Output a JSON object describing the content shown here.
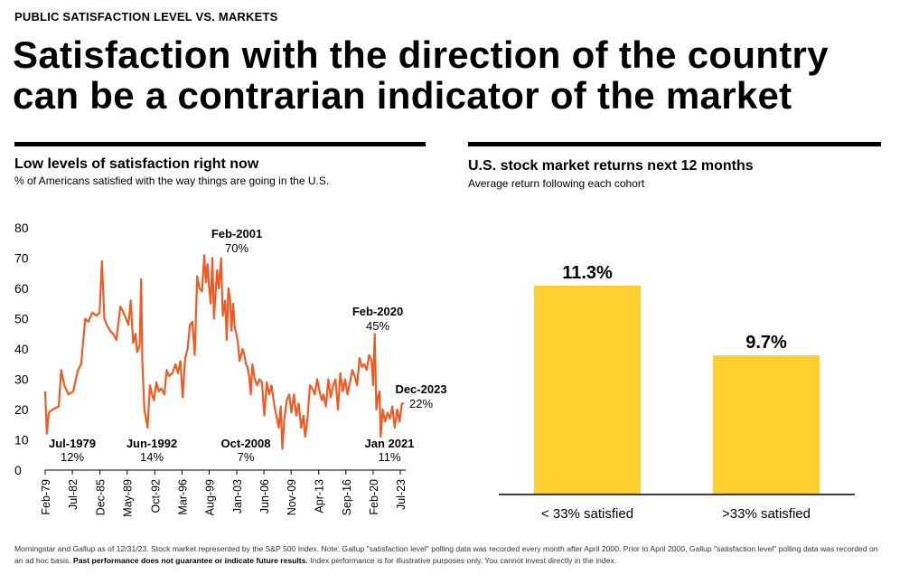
{
  "header": {
    "eyebrow": "PUBLIC SATISFACTION LEVEL VS. MARKETS",
    "headline": "Satisfaction with the direction of the country can be a contrarian indicator of the market"
  },
  "left_panel": {
    "title": "Low levels of satisfaction right now",
    "subtitle": "% of Americans satisfied with the way things are going in the U.S."
  },
  "right_panel": {
    "title": "U.S. stock market returns next 12 months",
    "subtitle": "Average return following each cohort"
  },
  "footnote": {
    "text1": "Morningstar and Gallup as of 12/31/23. Stock market represented by the S&P 500 Index. Note: Gallup \"satisfaction level\" polling data was recorded every month after April 2000. Prior to April 2000, Gallup \"satisfaction level\" polling data was recorded on an ad hoc basis. ",
    "bold": "Past performance does not guarantee or indicate future results.",
    "text2": " Index performance is for illustrative purposes only. You cannot invest directly in the index."
  },
  "colors": {
    "line": "#f15a22",
    "bar": "#fecf2f",
    "text": "#000000"
  },
  "chart_data": [
    {
      "type": "line",
      "title": "Low levels of satisfaction right now",
      "ylim": [
        0,
        80
      ],
      "xlim": [
        1979.1,
        2023.95
      ],
      "yticks": [
        0,
        10,
        20,
        30,
        40,
        50,
        60,
        70,
        80
      ],
      "xtick_labels": [
        "Feb-79",
        "Jul-82",
        "Dec-85",
        "May-89",
        "Oct-92",
        "Mar-96",
        "Aug-99",
        "Jan-03",
        "Jun-06",
        "Nov-09",
        "Apr-13",
        "Sep-16",
        "Feb-20",
        "Jul-23"
      ],
      "xtick_positions": [
        1979.1,
        1982.5,
        1985.95,
        1989.35,
        1992.8,
        1996.2,
        1999.6,
        2003.05,
        2006.45,
        2009.85,
        2013.3,
        2016.7,
        2020.1,
        2023.5
      ],
      "series": [
        {
          "x": [
            1979.1,
            1979.3,
            1979.55,
            1980.0,
            1980.8,
            1981.1,
            1981.5,
            1982.0,
            1982.6,
            1983.2,
            1983.6,
            1984.1,
            1984.5,
            1985.0,
            1985.5,
            1985.9,
            1986.2,
            1986.5,
            1986.8,
            1987.2,
            1987.6,
            1988.0,
            1988.5,
            1988.9,
            1989.2,
            1989.5,
            1989.8,
            1990.1,
            1990.4,
            1990.6,
            1990.9,
            1991.1,
            1991.25,
            1991.5,
            1991.9,
            1992.2,
            1992.45,
            1992.7,
            1993.0,
            1993.3,
            1993.6,
            1994.0,
            1994.3,
            1994.6,
            1995.0,
            1995.4,
            1995.7,
            1996.0,
            1996.3,
            1996.6,
            1996.9,
            1997.2,
            1997.5,
            1997.8,
            1998.1,
            1998.4,
            1998.7,
            1999.0,
            1999.2,
            1999.4,
            1999.6,
            1999.8,
            2000.0,
            2000.2,
            2000.4,
            2000.6,
            2000.8,
            2001.1,
            2001.3,
            2001.6,
            2001.8,
            2002.0,
            2002.2,
            2002.4,
            2002.6,
            2002.8,
            2003.0,
            2003.2,
            2003.4,
            2003.6,
            2003.8,
            2004.0,
            2004.2,
            2004.4,
            2004.6,
            2004.8,
            2005.0,
            2005.3,
            2005.6,
            2005.9,
            2006.2,
            2006.5,
            2006.8,
            2007.1,
            2007.4,
            2007.7,
            2008.0,
            2008.3,
            2008.55,
            2008.75,
            2009.0,
            2009.3,
            2009.6,
            2009.9,
            2010.2,
            2010.5,
            2010.8,
            2011.1,
            2011.4,
            2011.6,
            2011.9,
            2012.2,
            2012.5,
            2012.8,
            2013.1,
            2013.4,
            2013.7,
            2013.9,
            2014.2,
            2014.5,
            2014.8,
            2015.1,
            2015.4,
            2015.7,
            2016.0,
            2016.3,
            2016.6,
            2016.9,
            2017.2,
            2017.5,
            2017.8,
            2018.1,
            2018.4,
            2018.7,
            2019.0,
            2019.3,
            2019.6,
            2019.9,
            2020.1,
            2020.3,
            2020.5,
            2020.7,
            2020.9,
            2021.05,
            2021.3,
            2021.6,
            2021.9,
            2022.2,
            2022.5,
            2022.8,
            2023.1,
            2023.4,
            2023.7,
            2023.95
          ],
          "y": [
            26,
            12,
            19,
            20,
            21,
            33,
            28,
            25,
            26,
            33,
            35,
            50,
            49,
            52,
            51,
            52,
            69,
            50,
            48,
            46,
            45,
            43,
            54,
            52,
            50,
            48,
            56,
            42,
            45,
            39,
            41,
            63,
            36,
            20,
            14,
            28,
            25,
            23,
            29,
            26,
            27,
            25,
            33,
            31,
            32,
            35,
            32,
            36,
            24,
            37,
            40,
            48,
            49,
            38,
            64,
            60,
            59,
            71,
            62,
            68,
            60,
            55,
            70,
            50,
            58,
            66,
            60,
            70,
            51,
            56,
            43,
            60,
            57,
            46,
            55,
            47,
            45,
            42,
            36,
            38,
            40,
            38,
            35,
            34,
            31,
            25,
            35,
            30,
            28,
            30,
            29,
            18,
            29,
            25,
            28,
            22,
            18,
            14,
            21,
            7,
            17,
            23,
            25,
            19,
            25,
            18,
            22,
            14,
            18,
            11,
            17,
            28,
            27,
            25,
            30,
            26,
            23,
            25,
            21,
            30,
            24,
            28,
            30,
            20,
            32,
            26,
            30,
            25,
            29,
            33,
            31,
            28,
            37,
            34,
            35,
            33,
            38,
            36,
            28,
            45,
            20,
            24,
            26,
            11,
            20,
            16,
            19,
            17,
            21,
            14,
            20,
            16,
            22,
            22
          ]
        }
      ],
      "annotations": [
        {
          "label": "Jul-1979",
          "value": "12%"
        },
        {
          "label": "Jun-1992",
          "value": "14%"
        },
        {
          "label": "Feb-2001",
          "value": "70%"
        },
        {
          "label": "Oct-2008",
          "value": "7%"
        },
        {
          "label": "Feb-2020",
          "value": "45%"
        },
        {
          "label": "Jan 2021",
          "value": "11%"
        },
        {
          "label": "Dec-2023",
          "value": "22%"
        }
      ]
    },
    {
      "type": "bar",
      "title": "U.S. stock market returns next 12 months",
      "categories": [
        "< 33% satisfied",
        ">33% satisfied"
      ],
      "values": [
        11.3,
        9.7
      ],
      "value_labels": [
        "11.3%",
        "9.7%"
      ],
      "ylim": [
        6.5,
        11.9
      ]
    }
  ]
}
